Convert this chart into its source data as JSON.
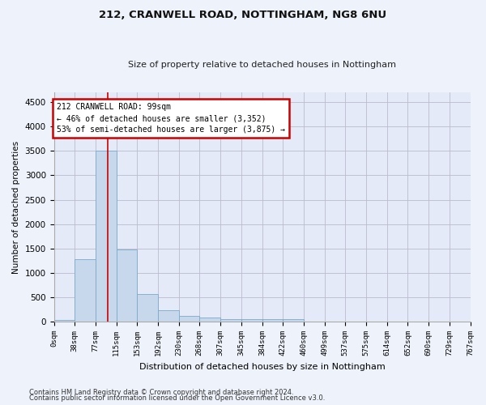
{
  "title1": "212, CRANWELL ROAD, NOTTINGHAM, NG8 6NU",
  "title2": "Size of property relative to detached houses in Nottingham",
  "xlabel": "Distribution of detached houses by size in Nottingham",
  "ylabel": "Number of detached properties",
  "footnote1": "Contains HM Land Registry data © Crown copyright and database right 2024.",
  "footnote2": "Contains public sector information licensed under the Open Government Licence v3.0.",
  "bar_values": [
    40,
    1280,
    3500,
    1480,
    575,
    240,
    115,
    85,
    55,
    50,
    50,
    45,
    0,
    0,
    0,
    0,
    0,
    0,
    0,
    0
  ],
  "bin_edges": [
    0,
    38,
    77,
    115,
    153,
    192,
    230,
    268,
    307,
    345,
    384,
    422,
    460,
    499,
    537,
    575,
    614,
    652,
    690,
    729,
    767
  ],
  "bin_labels": [
    "0sqm",
    "38sqm",
    "77sqm",
    "115sqm",
    "153sqm",
    "192sqm",
    "230sqm",
    "268sqm",
    "307sqm",
    "345sqm",
    "384sqm",
    "422sqm",
    "460sqm",
    "499sqm",
    "537sqm",
    "575sqm",
    "614sqm",
    "652sqm",
    "690sqm",
    "729sqm",
    "767sqm"
  ],
  "bar_color": "#c8d8ec",
  "bar_edge_color": "#7aaac8",
  "grid_color": "#bbbbcc",
  "annotation_line1": "212 CRANWELL ROAD: 99sqm",
  "annotation_line2": "← 46% of detached houses are smaller (3,352)",
  "annotation_line3": "53% of semi-detached houses are larger (3,875) →",
  "annotation_box_color": "#cc0000",
  "property_line_x": 99,
  "ylim": [
    0,
    4700
  ],
  "yticks": [
    0,
    500,
    1000,
    1500,
    2000,
    2500,
    3000,
    3500,
    4000,
    4500
  ],
  "background_color": "#eef2fb",
  "plot_background": "#e4eaf7",
  "title1_fontsize": 9.5,
  "title2_fontsize": 8.0
}
